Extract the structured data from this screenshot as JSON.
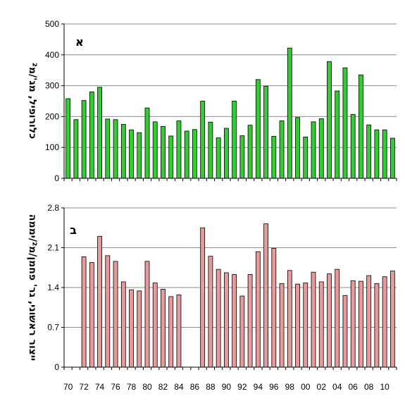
{
  "chart_data": [
    {
      "type": "bar",
      "panel_label": "א",
      "ylabel": "כלורופיל, מג'/מ²",
      "ylim": [
        0,
        500
      ],
      "yticks": [
        "0",
        "100",
        "200",
        "300",
        "400",
        "500"
      ],
      "grid": true,
      "bar_color": "#33cc33",
      "years": [
        1970,
        1971,
        1972,
        1973,
        1974,
        1975,
        1976,
        1977,
        1978,
        1979,
        1980,
        1981,
        1982,
        1983,
        1984,
        1985,
        1986,
        1987,
        1988,
        1989,
        1990,
        1991,
        1992,
        1993,
        1994,
        1995,
        1996,
        1997,
        1998,
        1999,
        2000,
        2001,
        2002,
        2003,
        2004,
        2005,
        2006,
        2007,
        2008,
        2009,
        2010,
        2011
      ],
      "values": [
        258,
        190,
        252,
        280,
        295,
        192,
        190,
        175,
        157,
        148,
        228,
        183,
        168,
        137,
        186,
        153,
        158,
        250,
        182,
        131,
        162,
        250,
        138,
        172,
        320,
        298,
        136,
        186,
        422,
        197,
        134,
        183,
        193,
        378,
        283,
        358,
        207,
        335,
        173,
        157,
        157,
        130
      ]
    },
    {
      "type": "bar",
      "panel_label": "ב",
      "ylabel": "ייצור ראשוני, גר' פחמן/מ²/יממה",
      "ylim": [
        0,
        2.8
      ],
      "yticks": [
        "0",
        "0.7",
        "1.4",
        "2.1",
        "2.8"
      ],
      "grid": true,
      "bar_color": "#e89a9a",
      "years": [
        1970,
        1971,
        1972,
        1973,
        1974,
        1975,
        1976,
        1977,
        1978,
        1979,
        1980,
        1981,
        1982,
        1983,
        1984,
        1985,
        1986,
        1987,
        1988,
        1989,
        1990,
        1991,
        1992,
        1993,
        1994,
        1995,
        1996,
        1997,
        1998,
        1999,
        2000,
        2001,
        2002,
        2003,
        2004,
        2005,
        2006,
        2007,
        2008,
        2009,
        2010,
        2011
      ],
      "values": [
        null,
        null,
        1.94,
        1.84,
        2.3,
        1.96,
        1.86,
        1.5,
        1.36,
        1.34,
        1.86,
        1.48,
        1.37,
        1.24,
        1.27,
        null,
        null,
        2.45,
        1.95,
        1.72,
        1.66,
        1.63,
        1.25,
        1.63,
        2.03,
        2.52,
        2.09,
        1.47,
        1.7,
        1.46,
        1.48,
        1.67,
        1.5,
        1.64,
        1.72,
        1.26,
        1.52,
        1.51,
        1.61,
        1.47,
        1.59,
        1.69
      ]
    }
  ],
  "xaxis": {
    "tick_labels": [
      "70",
      "72",
      "74",
      "76",
      "78",
      "80",
      "82",
      "84",
      "86",
      "88",
      "90",
      "92",
      "94",
      "96",
      "98",
      "00",
      "02",
      "04",
      "06",
      "08",
      "10"
    ]
  }
}
